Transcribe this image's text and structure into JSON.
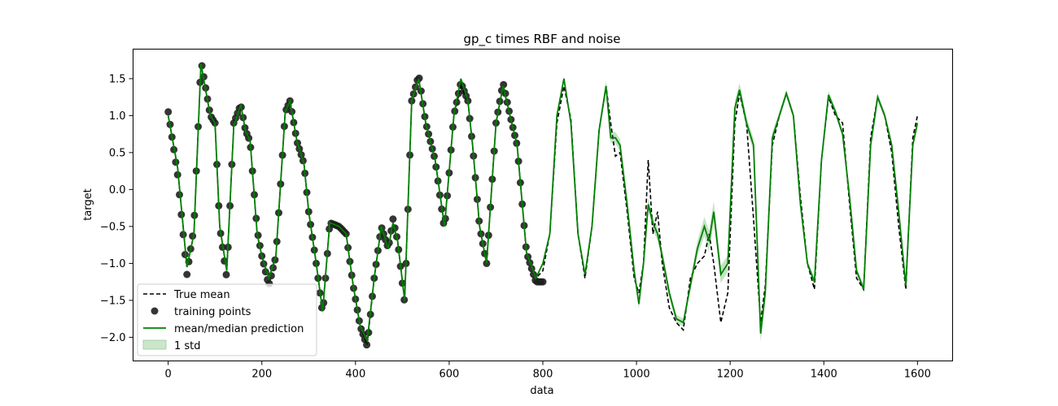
{
  "chart_data": {
    "type": "line",
    "title": "gp_c times RBF and noise",
    "xlabel": "data",
    "ylabel": "target",
    "xlim": [
      -75,
      1675
    ],
    "ylim": [
      -2.32,
      1.9
    ],
    "xticks": [
      0,
      200,
      400,
      600,
      800,
      1000,
      1200,
      1400,
      1600
    ],
    "yticks": [
      -2.0,
      -1.5,
      -1.0,
      -0.5,
      0.0,
      0.5,
      1.0,
      1.5
    ],
    "ytick_labels": [
      "−2.0",
      "−1.5",
      "−1.0",
      "−0.5",
      "0.0",
      "0.5",
      "1.0",
      "1.5"
    ],
    "grid": false,
    "legend_position": "lower-left",
    "colors": {
      "true_mean": "#000000",
      "training_points": "#1f1f1f",
      "prediction": "#008000",
      "std_band": "#7fbf7f"
    },
    "series": [
      {
        "name": "True mean",
        "style": "dashed",
        "x": [
          0,
          20,
          40,
          55,
          70,
          90,
          100,
          110,
          125,
          140,
          155,
          165,
          175,
          190,
          200,
          215,
          230,
          250,
          260,
          275,
          290,
          300,
          315,
          330,
          345,
          365,
          380,
          395,
          410,
          425,
          440,
          455,
          470,
          480,
          490,
          505,
          520,
          535,
          550,
          570,
          590,
          610,
          625,
          640,
          650,
          665,
          680,
          700,
          715,
          730,
          745,
          765,
          785,
          800,
          815,
          830,
          845,
          860,
          875,
          890,
          905,
          920,
          935,
          945,
          955,
          965,
          980,
          995,
          1005,
          1015,
          1025,
          1035,
          1045,
          1055,
          1070,
          1085,
          1100,
          1115,
          1130,
          1145,
          1155,
          1165,
          1180,
          1195,
          1210,
          1220,
          1235,
          1250,
          1265,
          1275,
          1290,
          1305,
          1320,
          1335,
          1350,
          1365,
          1380,
          1395,
          1410,
          1425,
          1440,
          1455,
          1470,
          1485,
          1500,
          1515,
          1530,
          1545,
          1560,
          1575,
          1590,
          1600
        ],
        "y": [
          1.0,
          0.3,
          -1.05,
          -0.6,
          1.7,
          1.0,
          0.9,
          -0.5,
          -1.1,
          0.85,
          1.15,
          0.8,
          0.65,
          -0.6,
          -0.9,
          -1.2,
          -0.9,
          1.05,
          1.2,
          0.65,
          0.35,
          -0.3,
          -0.95,
          -1.65,
          -0.45,
          -0.5,
          -0.6,
          -1.3,
          -1.85,
          -2.1,
          -1.2,
          -0.5,
          -0.8,
          -0.45,
          -0.7,
          -1.5,
          1.2,
          1.5,
          0.9,
          0.4,
          -0.5,
          1.0,
          1.4,
          1.2,
          0.6,
          -0.5,
          -1.0,
          0.9,
          1.4,
          1.0,
          0.6,
          -0.85,
          -1.2,
          -1.1,
          -0.6,
          0.9,
          1.4,
          0.95,
          -0.6,
          -1.2,
          -0.5,
          0.8,
          1.4,
          0.9,
          0.45,
          0.5,
          -0.3,
          -1.2,
          -1.4,
          -1.0,
          0.4,
          -0.6,
          -0.3,
          -1.0,
          -1.6,
          -1.8,
          -1.9,
          -1.2,
          -1.0,
          -0.9,
          -0.6,
          -1.0,
          -1.8,
          -1.4,
          0.9,
          1.3,
          0.9,
          -0.4,
          -1.8,
          -1.3,
          0.6,
          1.0,
          1.3,
          1.0,
          -0.1,
          -1.0,
          -1.35,
          0.4,
          1.25,
          1.0,
          0.9,
          -0.2,
          -1.2,
          -1.35,
          0.7,
          1.25,
          1.0,
          0.5,
          -0.5,
          -1.35,
          0.7,
          1.0
        ]
      },
      {
        "name": "training points",
        "style": "scatter",
        "x": [
          0,
          20,
          40,
          55,
          70,
          90,
          100,
          110,
          125,
          140,
          155,
          165,
          175,
          190,
          200,
          215,
          230,
          250,
          260,
          275,
          290,
          300,
          315,
          330,
          345,
          365,
          380,
          395,
          410,
          425,
          440,
          455,
          470,
          480,
          490,
          505,
          520,
          535,
          550,
          570,
          590,
          610,
          625,
          640,
          650,
          665,
          680,
          700,
          715,
          730,
          745,
          765,
          785,
          800
        ],
        "y": [
          1.05,
          0.2,
          -1.15,
          -0.5,
          1.75,
          1.0,
          0.9,
          -0.5,
          -1.2,
          0.9,
          1.15,
          0.8,
          0.65,
          -0.55,
          -0.9,
          -1.3,
          -0.9,
          1.05,
          1.2,
          0.65,
          0.35,
          -0.3,
          -0.95,
          -1.7,
          -0.45,
          -0.5,
          -0.6,
          -1.3,
          -1.85,
          -2.12,
          -1.2,
          -0.5,
          -0.8,
          -0.4,
          -0.7,
          -1.55,
          1.2,
          1.55,
          0.9,
          0.4,
          -0.55,
          1.0,
          1.45,
          1.2,
          0.6,
          -0.5,
          -1.0,
          0.9,
          1.45,
          1.0,
          0.6,
          -0.85,
          -1.25,
          -1.25
        ],
        "marker_spacing": 4
      },
      {
        "name": "mean/median prediction",
        "style": "solid",
        "x": [
          0,
          20,
          40,
          55,
          70,
          90,
          100,
          110,
          125,
          140,
          155,
          165,
          175,
          190,
          200,
          215,
          230,
          250,
          260,
          275,
          290,
          300,
          315,
          330,
          345,
          365,
          380,
          395,
          410,
          425,
          440,
          455,
          470,
          480,
          490,
          505,
          520,
          535,
          550,
          570,
          590,
          610,
          625,
          640,
          650,
          665,
          680,
          700,
          715,
          730,
          745,
          765,
          785,
          800,
          815,
          830,
          845,
          860,
          875,
          890,
          905,
          920,
          935,
          945,
          955,
          965,
          980,
          995,
          1005,
          1015,
          1025,
          1035,
          1045,
          1055,
          1070,
          1085,
          1100,
          1115,
          1130,
          1145,
          1155,
          1165,
          1180,
          1195,
          1210,
          1220,
          1235,
          1250,
          1265,
          1275,
          1290,
          1305,
          1320,
          1335,
          1350,
          1365,
          1380,
          1395,
          1410,
          1425,
          1440,
          1455,
          1470,
          1485,
          1500,
          1515,
          1530,
          1545,
          1560,
          1575,
          1590,
          1600
        ],
        "y": [
          1.0,
          0.3,
          -1.05,
          -0.6,
          1.7,
          1.0,
          0.9,
          -0.5,
          -1.1,
          0.85,
          1.15,
          0.8,
          0.65,
          -0.6,
          -0.9,
          -1.2,
          -0.9,
          1.05,
          1.2,
          0.65,
          0.35,
          -0.3,
          -0.95,
          -1.65,
          -0.45,
          -0.5,
          -0.6,
          -1.3,
          -1.85,
          -2.05,
          -1.2,
          -0.5,
          -0.8,
          -0.45,
          -0.7,
          -1.5,
          1.2,
          1.5,
          0.9,
          0.4,
          -0.5,
          1.0,
          1.5,
          1.2,
          0.6,
          -0.5,
          -1.0,
          0.9,
          1.4,
          1.0,
          0.6,
          -0.85,
          -1.2,
          -1.0,
          -0.6,
          1.0,
          1.5,
          0.9,
          -0.6,
          -1.15,
          -0.5,
          0.8,
          1.4,
          0.7,
          0.7,
          0.6,
          -0.2,
          -1.1,
          -1.55,
          -1.0,
          -0.2,
          -0.45,
          -0.6,
          -0.9,
          -1.4,
          -1.75,
          -1.8,
          -1.3,
          -0.8,
          -0.5,
          -0.7,
          -0.3,
          -1.15,
          -1.0,
          1.1,
          1.35,
          0.9,
          0.6,
          -1.95,
          -1.4,
          0.7,
          1.0,
          1.3,
          1.0,
          -0.2,
          -1.0,
          -1.25,
          0.4,
          1.28,
          1.05,
          0.75,
          -0.1,
          -1.1,
          -1.35,
          0.6,
          1.25,
          1.0,
          0.6,
          -0.3,
          -1.3,
          0.6,
          0.9
        ]
      },
      {
        "name": "1 std",
        "style": "band",
        "x": [
          0,
          800,
          900,
          960,
          1000,
          1040,
          1080,
          1100,
          1140,
          1160,
          1180,
          1210,
          1240,
          1272,
          1300,
          1600
        ],
        "halfwidth": [
          0.01,
          0.02,
          0.06,
          0.08,
          0.06,
          0.1,
          0.06,
          0.05,
          0.12,
          0.15,
          0.12,
          0.1,
          0.08,
          0.12,
          0.05,
          0.05
        ]
      }
    ]
  }
}
